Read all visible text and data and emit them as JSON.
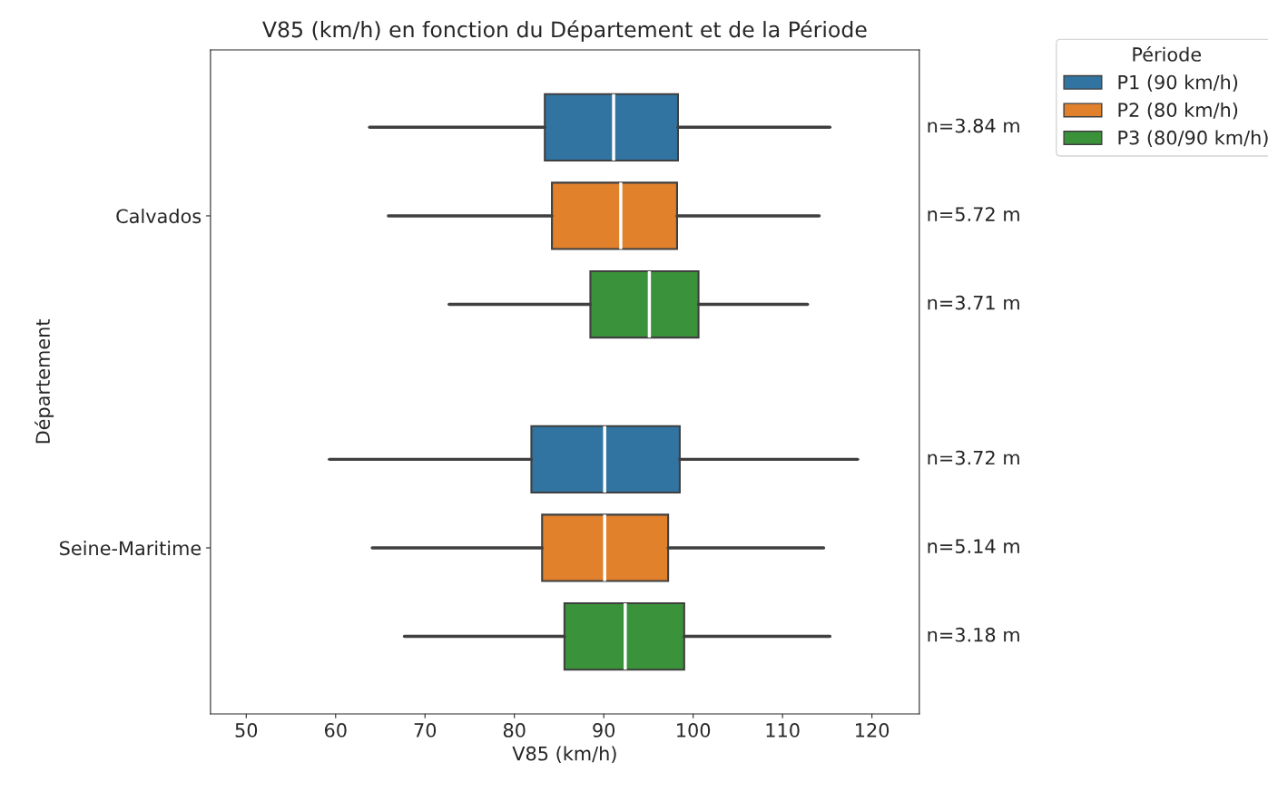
{
  "chart_data": {
    "type": "box",
    "orientation": "horizontal",
    "title": "V85 (km/h) en fonction du Département et de la Période",
    "xlabel": "V85 (km/h)",
    "ylabel": "Département",
    "legend_title": "Période",
    "legend": "top right",
    "categories": [
      "Calvados",
      "Seine-Maritime"
    ],
    "series": [
      {
        "name": "P1 (90 km/h)",
        "color": "#3274a1",
        "boxes": [
          {
            "low": 63.8,
            "q1": 83.4,
            "median": 91.1,
            "q3": 98.3,
            "high": 115.3
          },
          {
            "low": 59.3,
            "q1": 81.9,
            "median": 90.1,
            "q3": 98.5,
            "high": 118.4
          }
        ]
      },
      {
        "name": "P2 (80 km/h)",
        "color": "#e1812c",
        "boxes": [
          {
            "low": 65.9,
            "q1": 84.2,
            "median": 91.9,
            "q3": 98.2,
            "high": 114.1
          },
          {
            "low": 64.1,
            "q1": 83.1,
            "median": 90.1,
            "q3": 97.2,
            "high": 114.6
          }
        ]
      },
      {
        "name": "P3 (80/90 km/h)",
        "color": "#3a923a",
        "boxes": [
          {
            "low": 72.7,
            "q1": 88.5,
            "median": 95.1,
            "q3": 100.6,
            "high": 112.8
          },
          {
            "low": 67.7,
            "q1": 85.6,
            "median": 92.4,
            "q3": 99.0,
            "high": 115.3
          }
        ]
      }
    ],
    "annotations": [
      "n=3.84 m",
      "n=5.72 m",
      "n=3.71 m",
      "n=3.72 m",
      "n=5.14 m",
      "n=3.18 m"
    ],
    "xlim": [
      46,
      125.3
    ],
    "xticks": [
      50,
      60,
      70,
      80,
      90,
      100,
      110,
      120
    ]
  }
}
